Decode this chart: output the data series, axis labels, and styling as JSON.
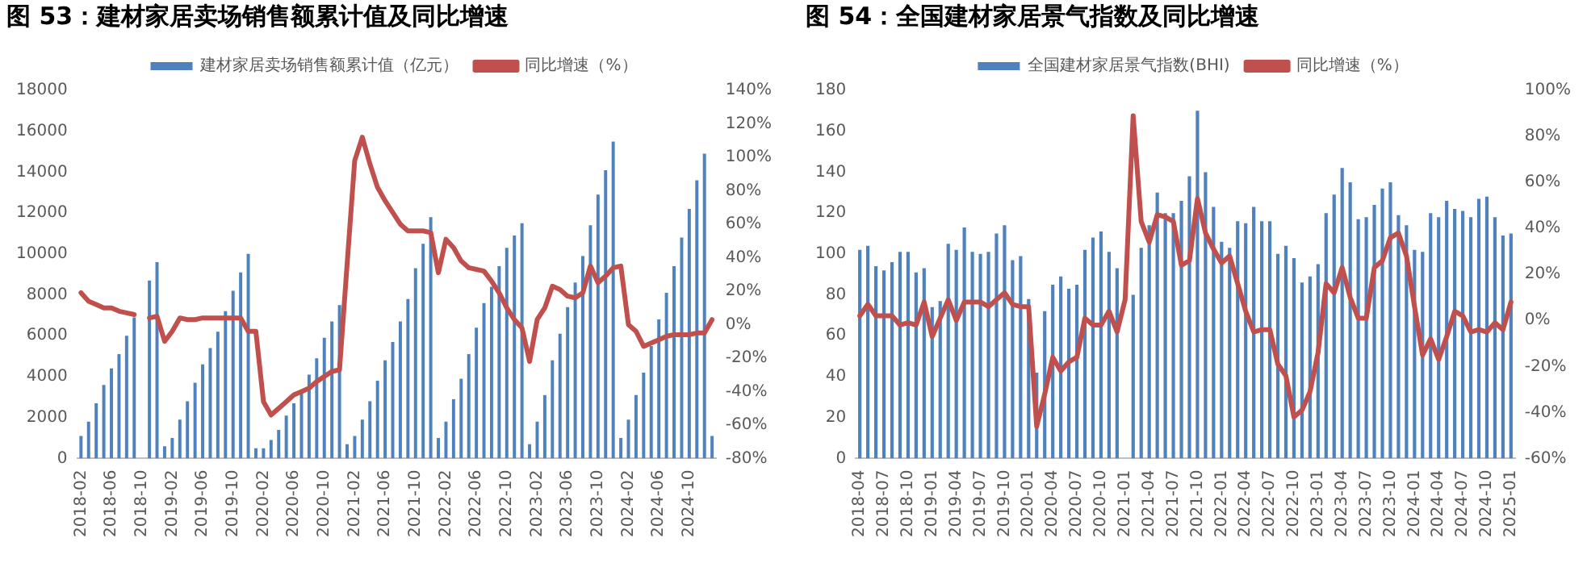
{
  "chart_data": [
    {
      "type": "bar",
      "title": "图 53：建材家居卖场销售额累计值及同比增速",
      "categories": [
        "2018-02",
        null,
        null,
        null,
        "2018-06",
        null,
        null,
        null,
        "2018-10",
        null,
        null,
        null,
        "2019-02",
        null,
        null,
        null,
        "2019-06",
        null,
        null,
        null,
        "2019-10",
        null,
        null,
        null,
        "2020-02",
        null,
        null,
        null,
        "2020-06",
        null,
        null,
        null,
        "2020-10",
        null,
        null,
        null,
        "2021-02",
        null,
        null,
        null,
        "2021-06",
        null,
        null,
        null,
        "2021-10",
        null,
        null,
        null,
        "2022-02",
        null,
        null,
        null,
        "2022-06",
        null,
        null,
        null,
        "2022-10",
        null,
        null,
        null,
        "2023-02",
        null,
        null,
        null,
        "2023-06",
        null,
        null,
        null,
        "2023-10",
        null,
        null,
        null,
        "2024-02",
        null,
        null,
        null,
        "2024-06",
        null,
        null,
        null,
        "2024-10",
        null,
        null,
        null
      ],
      "series": [
        {
          "name": "建材家居卖场销售额累计值（亿元）",
          "color": "#4f81bd",
          "values": [
            1100,
            1800,
            2700,
            3600,
            4400,
            5100,
            6000,
            6900,
            null,
            8700,
            9600,
            600,
            1000,
            1900,
            2800,
            3700,
            4600,
            5400,
            6200,
            7200,
            8200,
            9100,
            10000,
            500,
            500,
            900,
            1400,
            2100,
            2700,
            3300,
            4100,
            4900,
            5900,
            6700,
            7500,
            700,
            1100,
            1900,
            2800,
            3800,
            4800,
            5700,
            6700,
            7800,
            9300,
            10500,
            11800,
            1000,
            1800,
            2900,
            3900,
            5100,
            6400,
            7600,
            8400,
            9400,
            10300,
            10900,
            11500,
            700,
            1800,
            3100,
            4800,
            6100,
            7400,
            8600,
            9900,
            11400,
            12900,
            14100,
            15500,
            1000,
            1900,
            3100,
            4200,
            5500,
            6800,
            8100,
            9400,
            10800,
            12200,
            13600,
            14900,
            1100
          ]
        },
        {
          "name": "同比增速（%）",
          "type": "line",
          "axis": "y2",
          "color": "#c0504d",
          "values": [
            19,
            14,
            12,
            10,
            10,
            8,
            7,
            6,
            null,
            4,
            5,
            -10,
            -4,
            4,
            3,
            3,
            4,
            4,
            4,
            4,
            4,
            4,
            -4,
            -4,
            -46,
            -54,
            -50,
            -46,
            -42,
            -40,
            -38,
            -34,
            -31,
            -28,
            -27,
            36,
            98,
            112,
            96,
            82,
            74,
            67,
            60,
            56,
            56,
            56,
            55,
            31,
            51,
            46,
            38,
            34,
            33,
            32,
            26,
            19,
            10,
            3,
            -2,
            -22,
            3,
            10,
            23,
            21,
            17,
            16,
            19,
            35,
            25,
            29,
            34,
            35,
            0,
            -4,
            -13,
            -11,
            -9,
            -7,
            -6,
            -6,
            -6,
            -5,
            -5,
            3
          ]
        }
      ],
      "ylim": [
        0,
        18000
      ],
      "yticks": [
        0,
        2000,
        4000,
        6000,
        8000,
        10000,
        12000,
        14000,
        16000,
        18000
      ],
      "y2lim": [
        -80,
        140
      ],
      "y2ticks": [
        {
          "value": -80,
          "label": "-80%"
        },
        {
          "value": -60,
          "label": "-60%"
        },
        {
          "value": -40,
          "label": "-40%"
        },
        {
          "value": -20,
          "label": "-20%"
        },
        {
          "value": 0,
          "label": "0%"
        },
        {
          "value": 20,
          "label": "20%"
        },
        {
          "value": 40,
          "label": "40%"
        },
        {
          "value": 60,
          "label": "60%"
        },
        {
          "value": 80,
          "label": "80%"
        },
        {
          "value": 100,
          "label": "100%"
        },
        {
          "value": 120,
          "label": "120%"
        },
        {
          "value": 140,
          "label": "140%"
        }
      ],
      "grid": false,
      "legend": "top",
      "marker": "none"
    },
    {
      "type": "bar",
      "title": "图 54：全国建材家居景气指数及同比增速",
      "categories": [
        "2018-04",
        null,
        null,
        "2018-07",
        null,
        null,
        "2018-10",
        null,
        null,
        "2019-01",
        null,
        null,
        "2019-04",
        null,
        null,
        "2019-07",
        null,
        null,
        "2019-10",
        null,
        null,
        "2020-01",
        null,
        null,
        "2020-04",
        null,
        null,
        "2020-07",
        null,
        null,
        "2020-10",
        null,
        null,
        "2021-01",
        null,
        null,
        "2021-04",
        null,
        null,
        "2021-07",
        null,
        null,
        "2021-10",
        null,
        null,
        "2022-01",
        null,
        null,
        "2022-04",
        null,
        null,
        "2022-07",
        null,
        null,
        "2022-10",
        null,
        null,
        "2023-01",
        null,
        null,
        "2023-04",
        null,
        null,
        "2023-07",
        null,
        null,
        "2023-10",
        null,
        null,
        "2024-01",
        null,
        null,
        "2024-04",
        null,
        null,
        "2024-07",
        null,
        null,
        "2024-10",
        null,
        null,
        "2025-01"
      ],
      "series": [
        {
          "name": "全国建材家居景气指数(BHI)",
          "color": "#4f81bd",
          "values": [
            102,
            104,
            94,
            92,
            96,
            101,
            101,
            91,
            93,
            74,
            77,
            105,
            102,
            113,
            101,
            100,
            101,
            110,
            114,
            97,
            99,
            78,
            42,
            72,
            85,
            89,
            83,
            85,
            102,
            108,
            111,
            101,
            93,
            null,
            80,
            103,
            114,
            130,
            120,
            120,
            126,
            138,
            170,
            140,
            123,
            106,
            103,
            116,
            115,
            123,
            116,
            116,
            100,
            104,
            98,
            86,
            89,
            95,
            120,
            129,
            142,
            135,
            117,
            118,
            124,
            132,
            135,
            119,
            114,
            102,
            101,
            120,
            118,
            126,
            122,
            121,
            118,
            127,
            128,
            118,
            109,
            110
          ]
        },
        {
          "name": "同比增速（%）",
          "type": "line",
          "axis": "y2",
          "color": "#c0504d",
          "values": [
            2,
            7,
            2,
            2,
            2,
            -2,
            -1,
            -2,
            8,
            -7,
            1,
            9,
            0,
            8,
            8,
            8,
            6,
            9,
            12,
            7,
            6,
            6,
            -46,
            -32,
            -16,
            -22,
            -18,
            -16,
            1,
            -2,
            -2,
            4,
            -5,
            9,
            89,
            43,
            34,
            46,
            45,
            43,
            24,
            26,
            53,
            38,
            31,
            25,
            28,
            16,
            4,
            -5,
            -4,
            -4,
            -19,
            -24,
            -42,
            -39,
            -31,
            -14,
            16,
            12,
            23,
            10,
            1,
            1,
            23,
            26,
            36,
            38,
            28,
            6,
            -15,
            -8,
            -17,
            -7,
            4,
            2,
            -5,
            -4,
            -5,
            -1,
            -4,
            8
          ]
        }
      ],
      "ylim": [
        0,
        180
      ],
      "yticks": [
        0,
        20,
        40,
        60,
        80,
        100,
        120,
        140,
        160,
        180
      ],
      "y2lim": [
        -60,
        100
      ],
      "y2ticks": [
        {
          "value": -60,
          "label": "-60%"
        },
        {
          "value": -40,
          "label": "-40%"
        },
        {
          "value": -20,
          "label": "-20%"
        },
        {
          "value": 0,
          "label": "0%"
        },
        {
          "value": 20,
          "label": "20%"
        },
        {
          "value": 40,
          "label": "40%"
        },
        {
          "value": 60,
          "label": "60%"
        },
        {
          "value": 80,
          "label": "80%"
        },
        {
          "value": 100,
          "label": "100%"
        }
      ],
      "grid": false,
      "legend": "top",
      "marker": "none"
    }
  ]
}
